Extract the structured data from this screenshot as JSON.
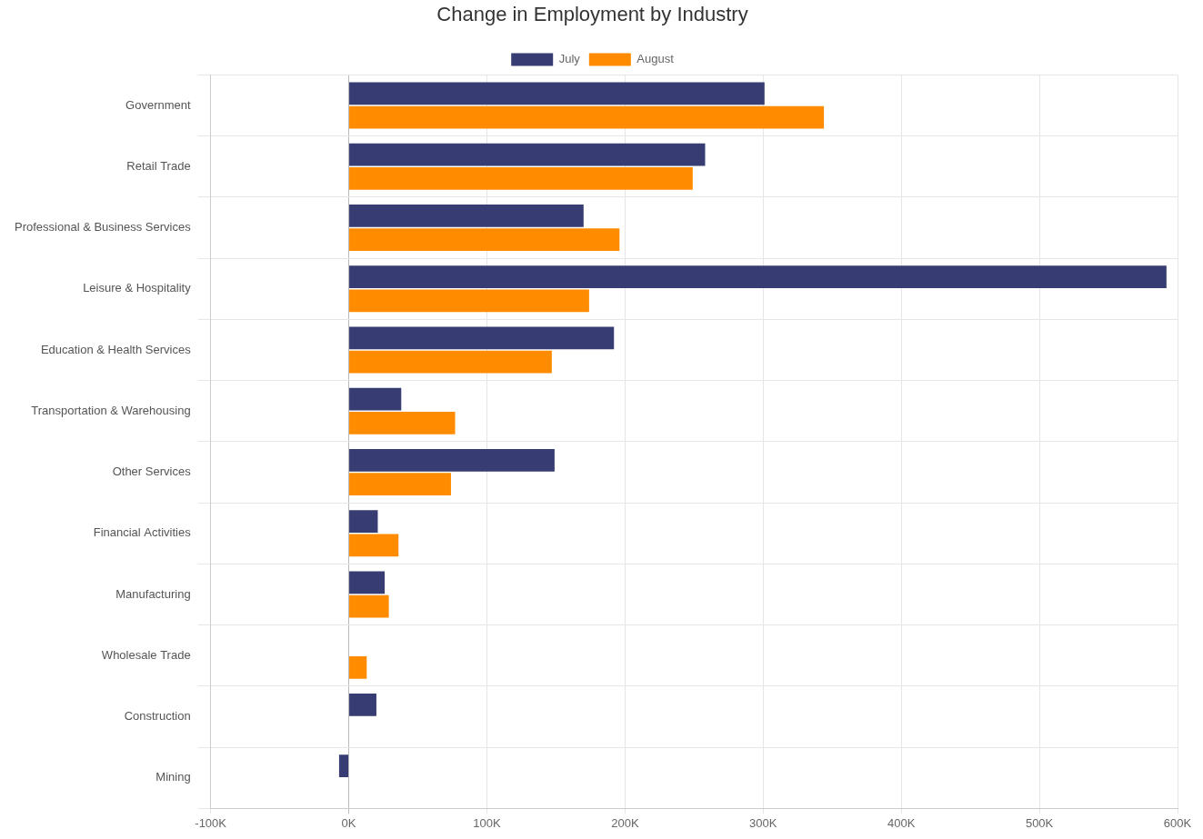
{
  "chart_data": {
    "type": "bar",
    "orientation": "horizontal",
    "title": "Change in Employment by Industry",
    "categories": [
      "Government",
      "Retail Trade",
      "Professional & Business Services",
      "Leisure & Hospitality",
      "Education & Health Services",
      "Transportation & Warehousing",
      "Other Services",
      "Financial Activities",
      "Manufacturing",
      "Wholesale Trade",
      "Construction",
      "Mining"
    ],
    "series": [
      {
        "name": "July",
        "color": "#373d72",
        "values": [
          301000,
          258000,
          170000,
          592000,
          192000,
          38000,
          149000,
          21000,
          26000,
          0,
          20000,
          -7000
        ]
      },
      {
        "name": "August",
        "color": "#ff8c00",
        "values": [
          344000,
          249000,
          196000,
          174000,
          147000,
          77000,
          74000,
          36000,
          29000,
          13000,
          0,
          0
        ]
      }
    ],
    "xlim": [
      -100000,
      600000
    ],
    "xticks": [
      {
        "value": -100000,
        "label": "-100K"
      },
      {
        "value": 0,
        "label": "0K"
      },
      {
        "value": 100000,
        "label": "100K"
      },
      {
        "value": 200000,
        "label": "200K"
      },
      {
        "value": 300000,
        "label": "300K"
      },
      {
        "value": 400000,
        "label": "400K"
      },
      {
        "value": 500000,
        "label": "500K"
      },
      {
        "value": 600000,
        "label": "600K"
      }
    ],
    "grid": true,
    "legend": "top"
  }
}
